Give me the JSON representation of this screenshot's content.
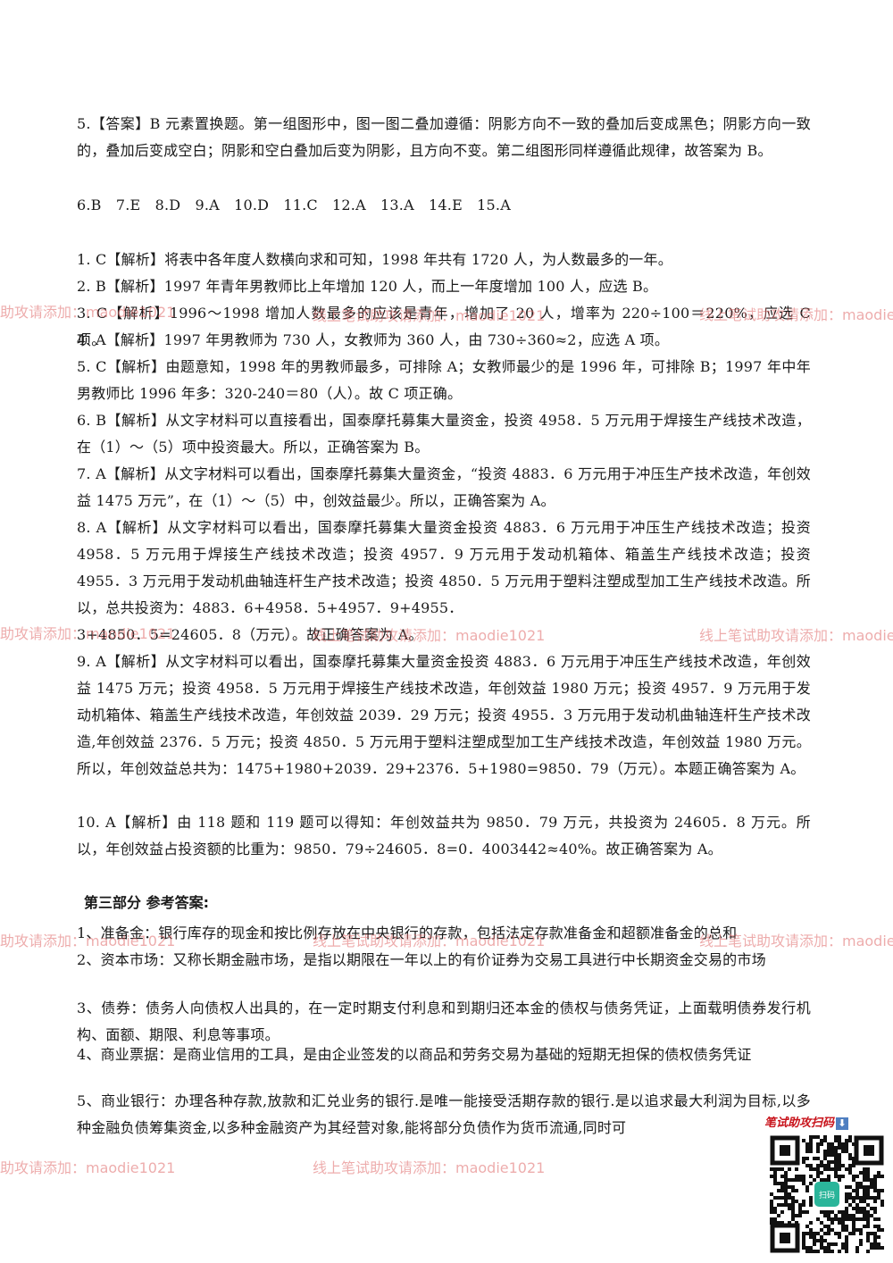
{
  "paragraphs": [
    "5.【答案】B 元素置换题。第一组图形中，图一图二叠加遵循：阴影方向不一致的叠加后变成黑色；阴影方向一致的，叠加后变成空白；阴影和空白叠加后变为阴影，且方向不变。第二组图形同样遵循此规律，故答案为 B。",
    "6.B　7.E　8.D　9.A　10.D　11.C　12.A　13.A　14.E　15.A",
    "1. C【解析】将表中各年度人数横向求和可知，1998 年共有 1720 人，为人数最多的一年。",
    "2. B【解析】1997 年青年男教师比上年增加 120 人，而上一年度增加 100 人，应选 B。",
    "3. C【解析】1996～1998 增加人数最多的应该是青年，增加了 20 人，增率为 220÷100＝220%，应选 C 项。",
    "4. A【解析】1997 年男教师为 730 人，女教师为 360 人，由 730÷360≈2，应选 A 项。",
    "5. C【解析】由题意知，1998 年的男教师最多，可排除 A；女教师最少的是 1996 年，可排除 B；1997 年中年男教师比 1996 年多：320-240＝80（人）。故 C 项正确。",
    "6. B【解析】从文字材料可以直接看出，国泰摩托募集大量资金，投资 4958．5 万元用于焊接生产线技术改造，在（1）～（5）项中投资最大。所以，正确答案为 B。",
    "7. A【解析】从文字材料可以看出，国泰摩托募集大量资金，“投资 4883．6 万元用于冲压生产技术改造，年创效益 1475 万元”，在（1）～（5）中，创效益最少。所以，正确答案为 A。",
    "8. A【解析】从文字材料可以看出，国泰摩托募集大量资金投资 4883．6 万元用于冲压生产线技术改造；投资 4958．5 万元用于焊接生产线技术改造；投资 4957．9 万元用于发动机箱体、箱盖生产线技术改造；投资 4955．3 万元用于发动机曲轴连杆生产技术改造；投资 4850．5 万元用于塑料注塑成型加工生产线技术改造。所以，总共投资为：4883．6+4958．5+4957．9+4955．",
    "3+4850．5=24605．8（万元）。故正确答案为 A。",
    "9. A【解析】从文字材料可以看出，国泰摩托募集大量资金投资 4883．6 万元用于冲压生产线技术改造，年创效益 1475 万元；投资 4958．5 万元用于焊接生产线技术改造，年创效益 1980 万元；投资 4957．9 万元用于发动机箱体、箱盖生产线技术改造，年创效益 2039．29 万元；投资 4955．3 万元用于发动机曲轴连杆生产技术改造,年创效益 2376．5 万元；投资 4850．5 万元用于塑料注塑成型加工生产线技术改造，年创效益 1980 万元。所以，年创效益总共为：1475+1980+2039．29+2376．5+1980=9850．79（万元）。本题正确答案为 A。",
    "10. A【解析】由 118 题和 119 题可以得知：年创效益共为 9850．79 万元，共投资为 24605．8 万元。所以，年创效益占投资额的比重为：9850．79÷24605．8=0．4003442≈40%。故正确答案为 A。",
    "1、准备金：银行库存的现金和按比例存放在中央银行的存款，包括法定存款准备金和超额准备金的总和",
    "2、资本市场：又称长期金融市场，是指以期限在一年以上的有价证券为交易工具进行中长期资金交易的市场",
    "3、债券：债务人向债权人出具的，在一定时期支付利息和到期归还本金的债权与债务凭证，上面载明债券发行机构、面额、期限、利息等事项。",
    "4、商业票据：是商业信用的工具，是由企业签发的以商品和劳务交易为基础的短期无担保的债权债务凭证",
    "5、商业银行：办理各种存款,放款和汇兑业务的银行.是唯一能接受活期存款的银行.是以追求最大利润为目标,以多种金融负债筹集资金,以多种金融资产为其经营对象,能将部分负债作为货币流通,同时可"
  ],
  "section_heading": "第三部分 参考答案:",
  "watermarks": {
    "left": "助攻请添加：maodie1021",
    "middle": "线上笔试助攻请添加：maodie1021",
    "right": "线上笔试助攻请添加：maodie1021"
  },
  "qr": {
    "caption": "笔试助攻扫码",
    "arrow_symbol": "⬇",
    "center_label": "扫码"
  },
  "colors": {
    "text": "#1a1a1a",
    "watermark": "#e06a6a",
    "qr_caption": "#c8131b",
    "qr_center": "#2bb59a"
  }
}
